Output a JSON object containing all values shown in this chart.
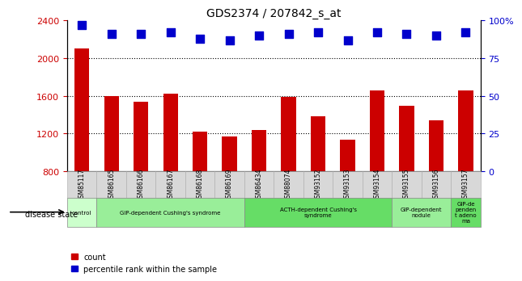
{
  "title": "GDS2374 / 207842_s_at",
  "samples": [
    "GSM85117",
    "GSM86165",
    "GSM86166",
    "GSM86167",
    "GSM86168",
    "GSM86169",
    "GSM86434",
    "GSM88074",
    "GSM93152",
    "GSM93153",
    "GSM93154",
    "GSM93155",
    "GSM93156",
    "GSM93157"
  ],
  "counts": [
    2100,
    1600,
    1540,
    1620,
    1220,
    1170,
    1240,
    1590,
    1380,
    1130,
    1660,
    1490,
    1340,
    1660
  ],
  "percentiles": [
    97,
    91,
    91,
    92,
    88,
    87,
    90,
    91,
    92,
    87,
    92,
    91,
    90,
    92
  ],
  "ylim_left": [
    800,
    2400
  ],
  "ylim_right": [
    0,
    100
  ],
  "yticks_left": [
    800,
    1200,
    1600,
    2000,
    2400
  ],
  "yticks_right": [
    0,
    25,
    50,
    75,
    100
  ],
  "bar_color": "#cc0000",
  "dot_color": "#0000cc",
  "groups": [
    {
      "label": "control",
      "start": 0,
      "end": 1,
      "color": "#ccffcc"
    },
    {
      "label": "GIP-dependent Cushing's syndrome",
      "start": 1,
      "end": 6,
      "color": "#99ee99"
    },
    {
      "label": "ACTH-dependent Cushing's\nsyndrome",
      "start": 6,
      "end": 11,
      "color": "#66dd66"
    },
    {
      "label": "GIP-dependent\nnodule",
      "start": 11,
      "end": 13,
      "color": "#99ee99"
    },
    {
      "label": "GIP-de\npenden\nt adeno\nma",
      "start": 13,
      "end": 14,
      "color": "#66dd66"
    }
  ],
  "disease_state_label": "disease state",
  "right_axis_color": "#0000cc",
  "bar_color_legend": "#cc0000",
  "dot_color_legend": "#0000cc",
  "bar_width": 0.5,
  "dot_size": 45,
  "grid_ticks": [
    1200,
    1600,
    2000
  ]
}
